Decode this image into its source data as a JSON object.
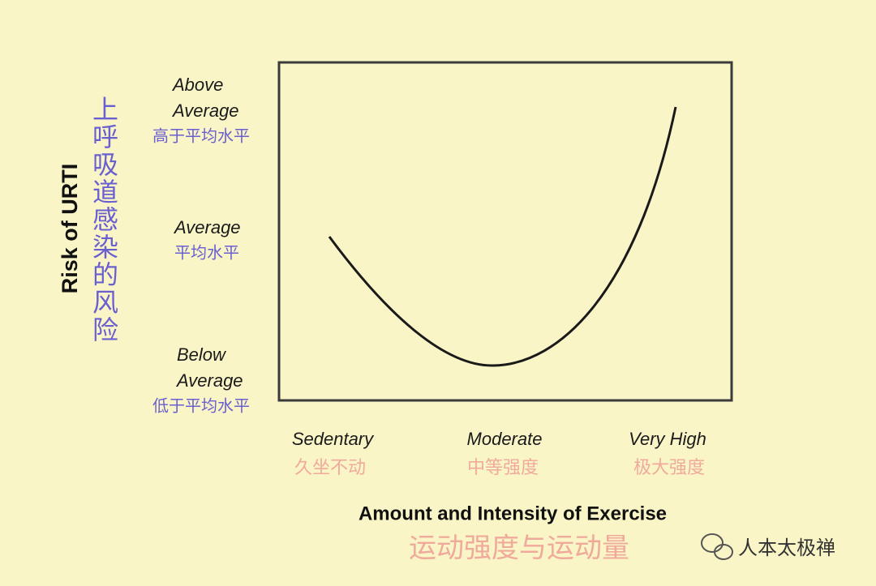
{
  "y_axis": {
    "title": "Risk of URTI",
    "title_cn": "上呼吸道感染的风险",
    "levels": [
      {
        "lines": [
          "Above",
          "Average"
        ],
        "cn": "高于平均水平"
      },
      {
        "lines": [
          "Average"
        ],
        "cn": "平均水平"
      },
      {
        "lines": [
          "Below",
          "Average"
        ],
        "cn": "低于平均水平"
      }
    ]
  },
  "x_axis": {
    "title": "Amount and Intensity of Exercise",
    "title_cn": "运动强度与运动量",
    "levels": [
      {
        "label": "Sedentary",
        "cn": "久坐不动"
      },
      {
        "label": "Moderate",
        "cn": "中等强度"
      },
      {
        "label": "Very High",
        "cn": "极大强度"
      }
    ]
  },
  "watermark": "人本太极禅"
}
